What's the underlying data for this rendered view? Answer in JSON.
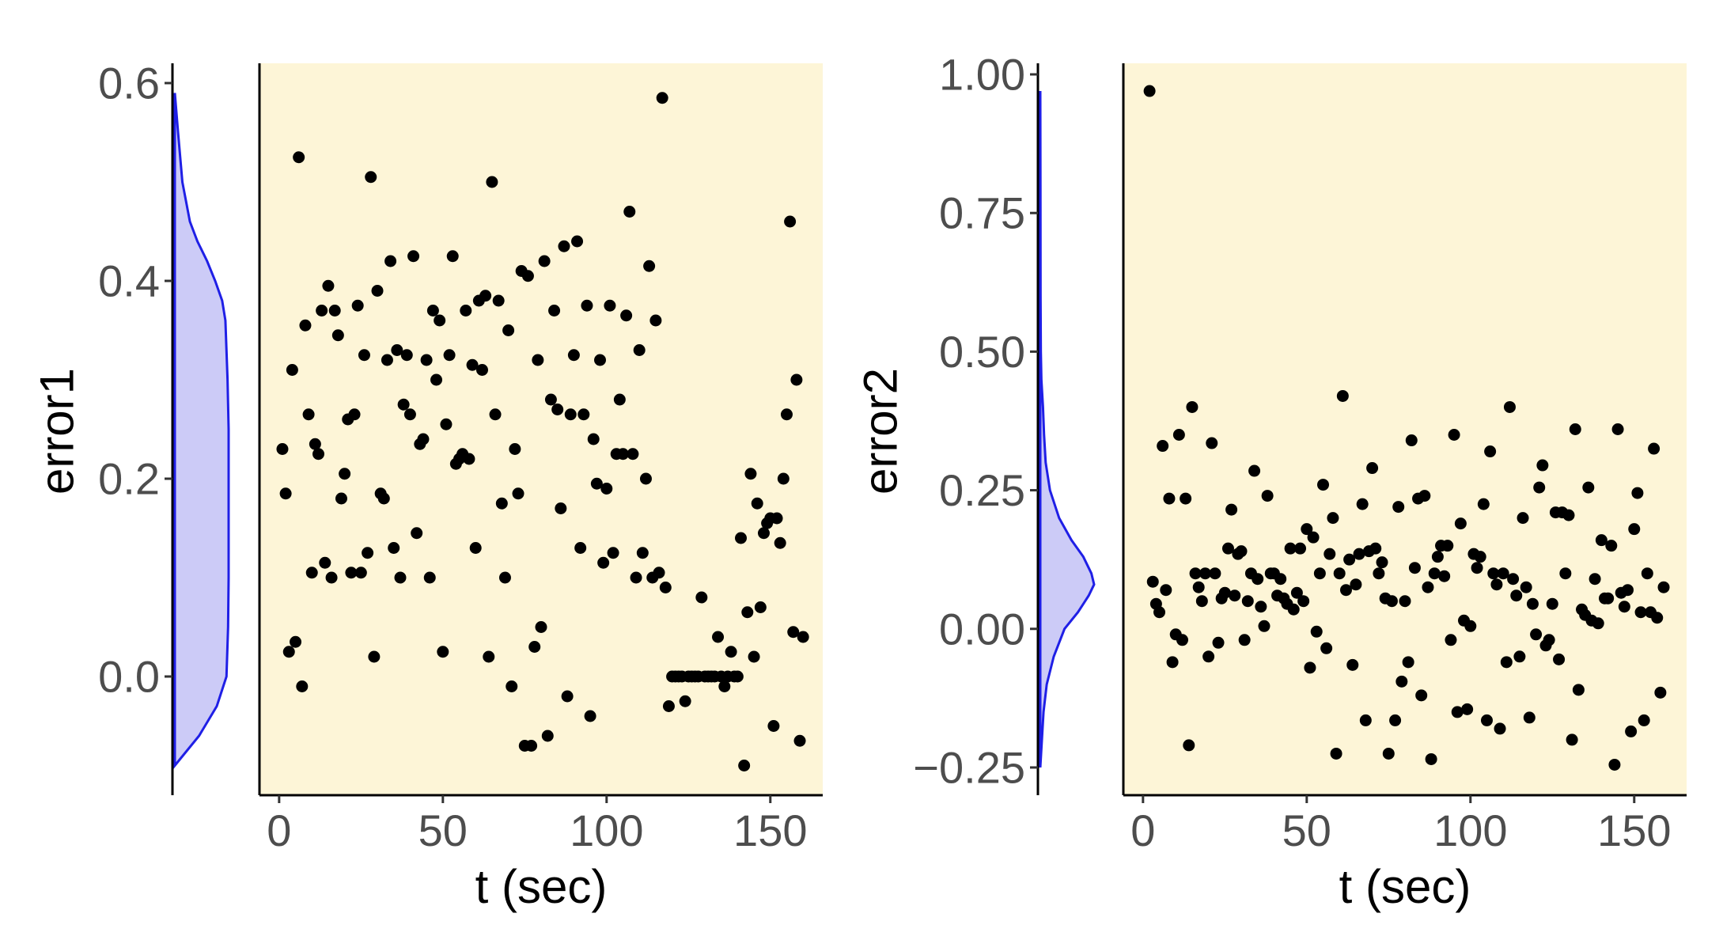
{
  "chart_data": [
    {
      "type": "scatter",
      "panel": "error1",
      "ylabel": "error1",
      "xlabel": "t (sec)",
      "xlim": [
        -6,
        166
      ],
      "ylim": [
        -0.12,
        0.62
      ],
      "x_ticks": [
        "0",
        "50",
        "100",
        "150"
      ],
      "y_ticks": [
        "0.0",
        "0.2",
        "0.4",
        "0.6"
      ],
      "marginal": "density",
      "density_shape": [
        [
          -0.09,
          0.0
        ],
        [
          -0.06,
          0.45
        ],
        [
          -0.03,
          0.78
        ],
        [
          0.0,
          0.96
        ],
        [
          0.05,
          0.99
        ],
        [
          0.1,
          1.0
        ],
        [
          0.15,
          1.0
        ],
        [
          0.2,
          1.0
        ],
        [
          0.25,
          1.0
        ],
        [
          0.3,
          0.98
        ],
        [
          0.33,
          0.96
        ],
        [
          0.36,
          0.94
        ],
        [
          0.38,
          0.88
        ],
        [
          0.4,
          0.75
        ],
        [
          0.42,
          0.6
        ],
        [
          0.44,
          0.42
        ],
        [
          0.46,
          0.28
        ],
        [
          0.5,
          0.14
        ],
        [
          0.55,
          0.06
        ],
        [
          0.59,
          0.0
        ]
      ],
      "points": [
        [
          1,
          0.23
        ],
        [
          2,
          0.185
        ],
        [
          3,
          0.025
        ],
        [
          4,
          0.31
        ],
        [
          5,
          0.035
        ],
        [
          6,
          0.525
        ],
        [
          7,
          -0.01
        ],
        [
          8,
          0.355
        ],
        [
          9,
          0.265
        ],
        [
          10,
          0.105
        ],
        [
          11,
          0.235
        ],
        [
          12,
          0.225
        ],
        [
          13,
          0.37
        ],
        [
          14,
          0.115
        ],
        [
          15,
          0.395
        ],
        [
          16,
          0.1
        ],
        [
          17,
          0.37
        ],
        [
          18,
          0.345
        ],
        [
          19,
          0.18
        ],
        [
          20,
          0.205
        ],
        [
          21,
          0.26
        ],
        [
          22,
          0.105
        ],
        [
          23,
          0.265
        ],
        [
          24,
          0.375
        ],
        [
          25,
          0.105
        ],
        [
          26,
          0.325
        ],
        [
          27,
          0.125
        ],
        [
          28,
          0.505
        ],
        [
          29,
          0.02
        ],
        [
          30,
          0.39
        ],
        [
          31,
          0.185
        ],
        [
          32,
          0.18
        ],
        [
          33,
          0.32
        ],
        [
          34,
          0.42
        ],
        [
          35,
          0.13
        ],
        [
          36,
          0.33
        ],
        [
          37,
          0.1
        ],
        [
          38,
          0.275
        ],
        [
          39,
          0.325
        ],
        [
          40,
          0.265
        ],
        [
          41,
          0.425
        ],
        [
          42,
          0.145
        ],
        [
          43,
          0.235
        ],
        [
          44,
          0.24
        ],
        [
          45,
          0.32
        ],
        [
          46,
          0.1
        ],
        [
          47,
          0.37
        ],
        [
          48,
          0.3
        ],
        [
          49,
          0.36
        ],
        [
          50,
          0.025
        ],
        [
          51,
          0.255
        ],
        [
          52,
          0.325
        ],
        [
          53,
          0.425
        ],
        [
          54,
          0.215
        ],
        [
          55,
          0.22
        ],
        [
          56,
          0.225
        ],
        [
          57,
          0.37
        ],
        [
          58,
          0.22
        ],
        [
          59,
          0.315
        ],
        [
          60,
          0.13
        ],
        [
          61,
          0.38
        ],
        [
          62,
          0.31
        ],
        [
          63,
          0.385
        ],
        [
          64,
          0.02
        ],
        [
          65,
          0.5
        ],
        [
          66,
          0.265
        ],
        [
          67,
          0.38
        ],
        [
          68,
          0.175
        ],
        [
          69,
          0.1
        ],
        [
          70,
          0.35
        ],
        [
          71,
          -0.01
        ],
        [
          72,
          0.23
        ],
        [
          73,
          0.185
        ],
        [
          74,
          0.41
        ],
        [
          75,
          -0.07
        ],
        [
          76,
          0.405
        ],
        [
          77,
          -0.07
        ],
        [
          78,
          0.03
        ],
        [
          79,
          0.32
        ],
        [
          80,
          0.05
        ],
        [
          81,
          0.42
        ],
        [
          82,
          -0.06
        ],
        [
          83,
          0.28
        ],
        [
          84,
          0.37
        ],
        [
          85,
          0.27
        ],
        [
          86,
          0.17
        ],
        [
          87,
          0.435
        ],
        [
          88,
          -0.02
        ],
        [
          89,
          0.265
        ],
        [
          90,
          0.325
        ],
        [
          91,
          0.44
        ],
        [
          92,
          0.13
        ],
        [
          93,
          0.265
        ],
        [
          94,
          0.375
        ],
        [
          95,
          -0.04
        ],
        [
          96,
          0.24
        ],
        [
          97,
          0.195
        ],
        [
          98,
          0.32
        ],
        [
          99,
          0.115
        ],
        [
          100,
          0.19
        ],
        [
          101,
          0.375
        ],
        [
          102,
          0.125
        ],
        [
          103,
          0.225
        ],
        [
          104,
          0.28
        ],
        [
          105,
          0.225
        ],
        [
          106,
          0.365
        ],
        [
          107,
          0.47
        ],
        [
          108,
          0.225
        ],
        [
          109,
          0.1
        ],
        [
          110,
          0.33
        ],
        [
          111,
          0.125
        ],
        [
          112,
          0.2
        ],
        [
          113,
          0.415
        ],
        [
          114,
          0.1
        ],
        [
          115,
          0.36
        ],
        [
          116,
          0.105
        ],
        [
          117,
          0.585
        ],
        [
          118,
          0.09
        ],
        [
          119,
          -0.03
        ],
        [
          120,
          0.0
        ],
        [
          121,
          0.0
        ],
        [
          122,
          0.0
        ],
        [
          123,
          0.0
        ],
        [
          124,
          -0.025
        ],
        [
          125,
          0.0
        ],
        [
          126,
          0.0
        ],
        [
          127,
          0.0
        ],
        [
          128,
          0.0
        ],
        [
          129,
          0.08
        ],
        [
          130,
          0.0
        ],
        [
          131,
          0.0
        ],
        [
          132,
          0.0
        ],
        [
          133,
          0.0
        ],
        [
          134,
          0.04
        ],
        [
          135,
          0.0
        ],
        [
          136,
          -0.01
        ],
        [
          137,
          0.0
        ],
        [
          138,
          0.025
        ],
        [
          139,
          0.0
        ],
        [
          140,
          0.0
        ],
        [
          141,
          0.14
        ],
        [
          142,
          -0.09
        ],
        [
          143,
          0.065
        ],
        [
          144,
          0.205
        ],
        [
          145,
          0.02
        ],
        [
          146,
          0.175
        ],
        [
          147,
          0.07
        ],
        [
          148,
          0.145
        ],
        [
          149,
          0.155
        ],
        [
          150,
          0.16
        ],
        [
          151,
          -0.05
        ],
        [
          152,
          0.16
        ],
        [
          153,
          0.135
        ],
        [
          154,
          0.2
        ],
        [
          155,
          0.265
        ],
        [
          156,
          0.46
        ],
        [
          157,
          0.045
        ],
        [
          158,
          0.3
        ],
        [
          159,
          -0.065
        ],
        [
          160,
          0.04
        ]
      ]
    },
    {
      "type": "scatter",
      "panel": "error2",
      "ylabel": "error2",
      "xlabel": "t (sec)",
      "xlim": [
        -6,
        166
      ],
      "ylim": [
        -0.3,
        1.02
      ],
      "x_ticks": [
        "0",
        "50",
        "100",
        "150"
      ],
      "y_ticks": [
        "−0.25",
        "0.00",
        "0.25",
        "0.50",
        "0.75",
        "1.00"
      ],
      "marginal": "density",
      "density_shape": [
        [
          -0.25,
          0.0
        ],
        [
          -0.2,
          0.03
        ],
        [
          -0.15,
          0.06
        ],
        [
          -0.1,
          0.12
        ],
        [
          -0.05,
          0.25
        ],
        [
          0.0,
          0.45
        ],
        [
          0.03,
          0.7
        ],
        [
          0.06,
          0.9
        ],
        [
          0.08,
          1.0
        ],
        [
          0.1,
          0.95
        ],
        [
          0.13,
          0.8
        ],
        [
          0.16,
          0.58
        ],
        [
          0.2,
          0.35
        ],
        [
          0.25,
          0.18
        ],
        [
          0.3,
          0.1
        ],
        [
          0.35,
          0.07
        ],
        [
          0.4,
          0.05
        ],
        [
          0.45,
          0.02
        ],
        [
          0.5,
          0.01
        ],
        [
          0.6,
          0.005
        ],
        [
          0.8,
          0.003
        ],
        [
          0.97,
          0.0
        ]
      ],
      "points": [
        [
          2,
          0.97
        ],
        [
          3,
          0.085
        ],
        [
          4,
          0.045
        ],
        [
          5,
          0.03
        ],
        [
          6,
          0.33
        ],
        [
          7,
          0.07
        ],
        [
          8,
          0.235
        ],
        [
          9,
          -0.06
        ],
        [
          10,
          -0.01
        ],
        [
          11,
          0.35
        ],
        [
          12,
          -0.02
        ],
        [
          13,
          0.235
        ],
        [
          14,
          -0.21
        ],
        [
          15,
          0.4
        ],
        [
          16,
          0.1
        ],
        [
          17,
          0.075
        ],
        [
          18,
          0.05
        ],
        [
          19,
          0.1
        ],
        [
          20,
          -0.05
        ],
        [
          21,
          0.335
        ],
        [
          22,
          0.1
        ],
        [
          23,
          -0.025
        ],
        [
          24,
          0.055
        ],
        [
          25,
          0.065
        ],
        [
          26,
          0.145
        ],
        [
          27,
          0.215
        ],
        [
          28,
          0.06
        ],
        [
          29,
          0.135
        ],
        [
          30,
          0.14
        ],
        [
          31,
          -0.02
        ],
        [
          32,
          0.05
        ],
        [
          33,
          0.1
        ],
        [
          34,
          0.285
        ],
        [
          35,
          0.09
        ],
        [
          36,
          0.04
        ],
        [
          37,
          0.005
        ],
        [
          38,
          0.24
        ],
        [
          39,
          0.1
        ],
        [
          40,
          0.1
        ],
        [
          41,
          0.06
        ],
        [
          42,
          0.09
        ],
        [
          43,
          0.055
        ],
        [
          44,
          0.045
        ],
        [
          45,
          0.145
        ],
        [
          46,
          0.035
        ],
        [
          47,
          0.065
        ],
        [
          48,
          0.145
        ],
        [
          49,
          0.05
        ],
        [
          50,
          0.18
        ],
        [
          51,
          -0.07
        ],
        [
          52,
          0.165
        ],
        [
          53,
          -0.005
        ],
        [
          54,
          0.1
        ],
        [
          55,
          0.26
        ],
        [
          56,
          -0.035
        ],
        [
          57,
          0.135
        ],
        [
          58,
          0.2
        ],
        [
          59,
          -0.225
        ],
        [
          60,
          0.1
        ],
        [
          61,
          0.42
        ],
        [
          62,
          0.07
        ],
        [
          63,
          0.125
        ],
        [
          64,
          -0.065
        ],
        [
          65,
          0.08
        ],
        [
          66,
          0.135
        ],
        [
          67,
          0.225
        ],
        [
          68,
          -0.165
        ],
        [
          69,
          0.14
        ],
        [
          70,
          0.29
        ],
        [
          71,
          0.145
        ],
        [
          72,
          0.1
        ],
        [
          73,
          0.12
        ],
        [
          74,
          0.055
        ],
        [
          75,
          -0.225
        ],
        [
          76,
          0.05
        ],
        [
          77,
          -0.165
        ],
        [
          78,
          0.22
        ],
        [
          79,
          -0.095
        ],
        [
          80,
          0.05
        ],
        [
          81,
          -0.06
        ],
        [
          82,
          0.34
        ],
        [
          83,
          0.11
        ],
        [
          84,
          0.235
        ],
        [
          85,
          -0.12
        ],
        [
          86,
          0.24
        ],
        [
          87,
          0.075
        ],
        [
          88,
          -0.235
        ],
        [
          89,
          0.1
        ],
        [
          90,
          0.13
        ],
        [
          91,
          0.15
        ],
        [
          92,
          0.095
        ],
        [
          93,
          0.15
        ],
        [
          94,
          -0.02
        ],
        [
          95,
          0.35
        ],
        [
          96,
          -0.15
        ],
        [
          97,
          0.19
        ],
        [
          98,
          0.015
        ],
        [
          99,
          -0.145
        ],
        [
          100,
          0.005
        ],
        [
          101,
          0.135
        ],
        [
          102,
          0.11
        ],
        [
          103,
          0.13
        ],
        [
          104,
          0.225
        ],
        [
          105,
          -0.165
        ],
        [
          106,
          0.32
        ],
        [
          107,
          0.1
        ],
        [
          108,
          0.08
        ],
        [
          109,
          -0.18
        ],
        [
          110,
          0.1
        ],
        [
          111,
          -0.06
        ],
        [
          112,
          0.4
        ],
        [
          113,
          0.09
        ],
        [
          114,
          0.06
        ],
        [
          115,
          -0.05
        ],
        [
          116,
          0.2
        ],
        [
          117,
          0.075
        ],
        [
          118,
          -0.16
        ],
        [
          119,
          0.045
        ],
        [
          120,
          -0.01
        ],
        [
          121,
          0.255
        ],
        [
          122,
          0.295
        ],
        [
          123,
          -0.03
        ],
        [
          124,
          -0.02
        ],
        [
          125,
          0.045
        ],
        [
          126,
          0.21
        ],
        [
          127,
          -0.055
        ],
        [
          128,
          0.21
        ],
        [
          129,
          0.1
        ],
        [
          130,
          0.205
        ],
        [
          131,
          -0.2
        ],
        [
          132,
          0.36
        ],
        [
          133,
          -0.11
        ],
        [
          134,
          0.035
        ],
        [
          135,
          0.025
        ],
        [
          136,
          0.255
        ],
        [
          137,
          0.015
        ],
        [
          138,
          0.09
        ],
        [
          139,
          0.01
        ],
        [
          140,
          0.16
        ],
        [
          141,
          0.055
        ],
        [
          142,
          0.055
        ],
        [
          143,
          0.15
        ],
        [
          144,
          -0.245
        ],
        [
          145,
          0.36
        ],
        [
          146,
          0.065
        ],
        [
          147,
          0.04
        ],
        [
          148,
          0.07
        ],
        [
          149,
          -0.185
        ],
        [
          150,
          0.18
        ],
        [
          151,
          0.245
        ],
        [
          152,
          0.03
        ],
        [
          153,
          -0.165
        ],
        [
          154,
          0.1
        ],
        [
          155,
          0.03
        ],
        [
          156,
          0.325
        ],
        [
          157,
          0.02
        ],
        [
          158,
          -0.115
        ],
        [
          159,
          0.075
        ]
      ]
    }
  ]
}
